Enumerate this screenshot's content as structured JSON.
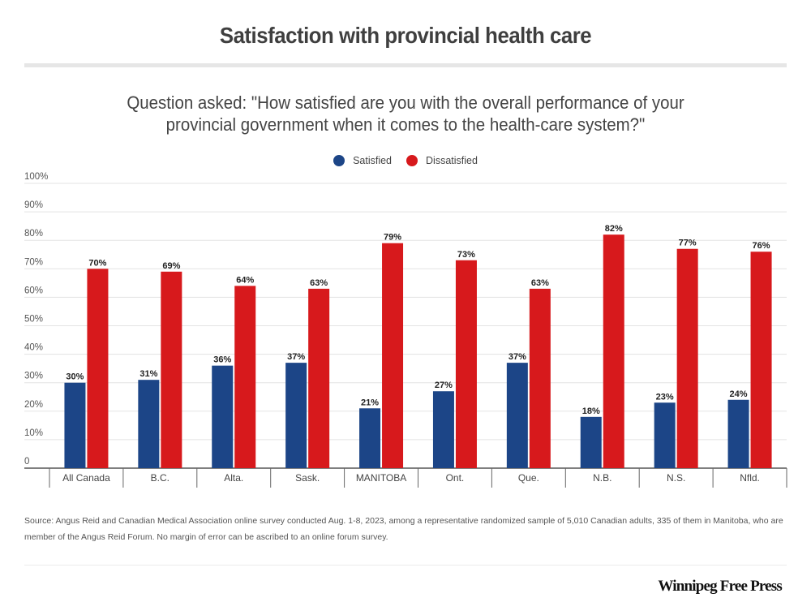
{
  "header": {
    "title": "Satisfaction with provincial health care",
    "subtitle_line1": "Question asked: \"How satisfied are you with the overall performance of your",
    "subtitle_line2": "provincial government when it comes to the health-care system?\""
  },
  "footer": {
    "source": "Source: Angus Reid and Canadian Medical Association online survey conducted Aug. 1-8, 2023, among a representative randomized sample of 5,010 Canadian adults, 335 of them in Manitoba, who are member of the Angus Reid Forum. No margin of error can be ascribed to an online forum survey.",
    "brand": "Winnipeg Free Press"
  },
  "chart_data": {
    "type": "bar",
    "title": "Satisfaction with provincial health care",
    "xlabel": "",
    "ylabel": "",
    "ylim": [
      0,
      100
    ],
    "yticks": [
      0,
      10,
      20,
      30,
      40,
      50,
      60,
      70,
      80,
      90,
      100
    ],
    "ytick_labels": [
      "0",
      "10%",
      "20%",
      "30%",
      "40%",
      "50%",
      "60%",
      "70%",
      "80%",
      "90%",
      "100%"
    ],
    "grid": true,
    "legend_position": "top-center",
    "categories": [
      "All Canada",
      "B.C.",
      "Alta.",
      "Sask.",
      "MANITOBA",
      "Ont.",
      "Que.",
      "N.B.",
      "N.S.",
      "Nfld."
    ],
    "series": [
      {
        "name": "Satisfied",
        "color": "#1c4587",
        "values": [
          30,
          31,
          36,
          37,
          21,
          27,
          37,
          18,
          23,
          24
        ]
      },
      {
        "name": "Dissatisfied",
        "color": "#d7191c",
        "values": [
          70,
          69,
          64,
          63,
          79,
          73,
          63,
          82,
          77,
          76
        ]
      }
    ],
    "value_label_suffix": "%"
  }
}
